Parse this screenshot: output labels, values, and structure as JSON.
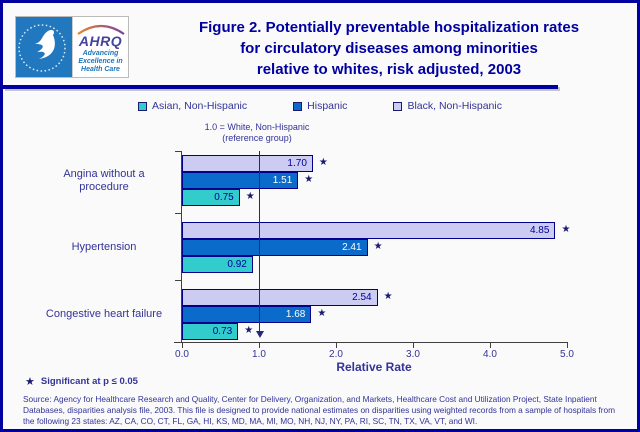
{
  "header": {
    "title_lines": [
      "Figure 2. Potentially preventable hospitalization rates",
      "for circulatory diseases among minorities",
      "relative to whites, risk adjusted, 2003"
    ],
    "ahrq_logo_text": "AHRQ",
    "ahrq_tagline_lines": [
      "Advancing",
      "Excellence in",
      "Health Care"
    ]
  },
  "chart_data": {
    "type": "bar",
    "orientation": "horizontal",
    "title": "Figure 2. Potentially preventable hospitalization rates for circulatory diseases among minorities relative to whites, risk adjusted, 2003",
    "categories": [
      "Angina without a procedure",
      "Hypertension",
      "Congestive heart failure"
    ],
    "series": [
      {
        "name": "Black, Non-Hispanic",
        "color": "#CCCCF2",
        "text_color": "#000099",
        "values": [
          1.7,
          4.85,
          2.54
        ],
        "significant": [
          true,
          true,
          true
        ]
      },
      {
        "name": "Hispanic",
        "color": "#0B6BCB",
        "text_color": "#FFFFFF",
        "values": [
          1.51,
          2.41,
          1.68
        ],
        "significant": [
          true,
          true,
          true
        ]
      },
      {
        "name": "Asian, Non-Hispanic",
        "color": "#33CCCC",
        "text_color": "#000099",
        "values": [
          0.75,
          0.92,
          0.73
        ],
        "significant": [
          true,
          false,
          true
        ]
      }
    ],
    "legend": [
      {
        "label": "Asian, Non-Hispanic",
        "color": "#33CCCC"
      },
      {
        "label": "Hispanic",
        "color": "#0B6BCB"
      },
      {
        "label": "Black, Non-Hispanic",
        "color": "#CCCCF2"
      }
    ],
    "xlabel": "Relative Rate",
    "xlim": [
      0.0,
      5.0
    ],
    "xticks": [
      "0.0",
      "1.0",
      "2.0",
      "3.0",
      "4.0",
      "5.0"
    ],
    "grid": false,
    "legend_position": "top",
    "reference_line": 1.0,
    "reference_note_lines": [
      "1.0 = White, Non-Hispanic",
      "(reference group)"
    ],
    "significance_marker": "★"
  },
  "footnote": {
    "marker": "★",
    "text": "Significant at p ≤ 0.05"
  },
  "source": {
    "text": "Source: Agency for Healthcare Research and Quality, Center for Delivery, Organization, and Markets, Healthcare Cost and Utilization Project, State Inpatient Databases, disparities analysis file, 2003. This file is designed to provide national estimates on disparities using weighted records from a sample of hospitals from the following 23 states: AZ, CA, CO, CT, FL, GA, HI, KS, MD, MA, MI, MO, NH, NJ, NY, PA, RI, SC, TN, TX, VA, VT, and WI."
  }
}
